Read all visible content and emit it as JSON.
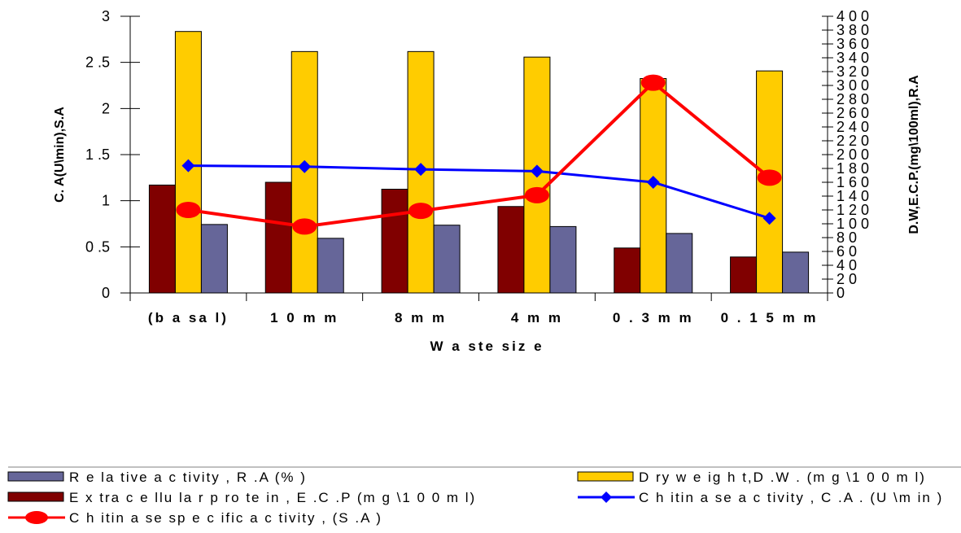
{
  "chart_data": {
    "type": "bar",
    "categories": [
      "(basal)",
      "10mm",
      "8mm",
      "4mm",
      "0.3mm",
      "0.15mm"
    ],
    "category_labels": [
      "(b a sa l)",
      "1 0 m m",
      "8 m m",
      "4 m m",
      "0 . 3 m m",
      "0 . 1 5 m m"
    ],
    "xlabel": "W  a ste  siz e",
    "ylabel_left": "C. A(U\\min),S.A",
    "ylabel_right": "D.W,E.C.P.(mg\\100ml),R.A",
    "ylim_left": [
      0,
      3
    ],
    "ylim_right": [
      0,
      400
    ],
    "yticks_left": [
      "0",
      "0 .5",
      "1",
      "1 .5",
      "2",
      "2 .5",
      "3"
    ],
    "yticks_right": [
      "0",
      "2 0",
      "4 0",
      "6 0",
      "8 0",
      "1 0 0",
      "1 2 0",
      "1 4 0",
      "1 6 0",
      "1 8 0",
      "2 0 0",
      "2 2 0",
      "2 4 0",
      "2 6 0",
      "2 8 0",
      "3 0 0",
      "3 2 0",
      "3 4 0",
      "3 6 0",
      "3 8 0",
      "4 0 0"
    ],
    "grid": false,
    "legend_position": "bottom",
    "series": [
      {
        "key": "ecp",
        "name": "E x tra c e llu la r  p ro te in , E .C .P  (m g \\1 0 0 m l)",
        "kind": "bar",
        "axis": "right",
        "color": "#800000",
        "values": [
          156,
          160,
          150,
          125,
          65,
          52
        ]
      },
      {
        "key": "dw",
        "name": "D ry  w e ig h t,D .W . (m g \\1 0 0 m l)",
        "kind": "bar",
        "axis": "right",
        "color": "#FFCC00",
        "values": [
          378,
          349,
          349,
          341,
          310,
          321
        ]
      },
      {
        "key": "ra",
        "name": "R e la tive  a c tivity , R .A  (% )",
        "kind": "bar",
        "axis": "right",
        "color": "#666699",
        "values": [
          99,
          79,
          98,
          96,
          86,
          59
        ]
      },
      {
        "key": "ca",
        "name": "C h itin a se  a c tivity , C .A . (U \\m in )",
        "kind": "line",
        "axis": "left",
        "color": "#0000FF",
        "marker": "diamond",
        "values": [
          1.38,
          1.37,
          1.34,
          1.32,
          1.2,
          0.81
        ]
      },
      {
        "key": "sa",
        "name": "C h itin a se  sp e c ific  a c tivity , (S .A )",
        "kind": "line",
        "axis": "left",
        "color": "#FF0000",
        "marker": "circle",
        "values": [
          0.9,
          0.72,
          0.89,
          1.06,
          2.28,
          1.25
        ]
      }
    ]
  },
  "legend_order": [
    "ra",
    "dw",
    "ecp",
    "ca",
    "sa"
  ]
}
